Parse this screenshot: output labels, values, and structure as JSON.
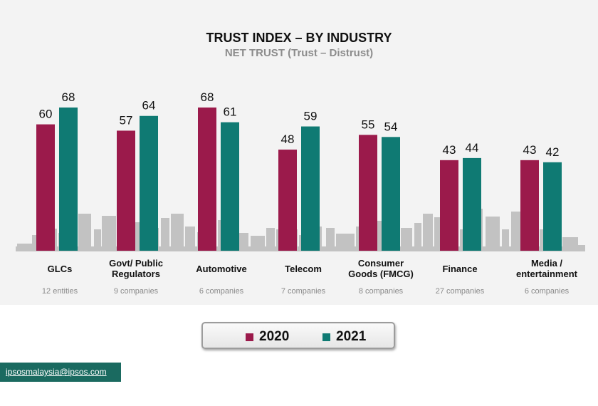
{
  "chart_data": {
    "type": "bar",
    "title": "TRUST INDEX – BY INDUSTRY",
    "subtitle": "NET TRUST (Trust – Distrust)",
    "categories": [
      "GLCs",
      "Govt/ Public\nRegulators",
      "Automotive",
      "Telecom",
      "Consumer\nGoods (FMCG)",
      "Finance",
      "Media /\nentertainment"
    ],
    "notes": [
      "12 entities",
      "9 companies",
      "6 companies",
      "7 companies",
      "8 companies",
      "27 companies",
      "6 companies"
    ],
    "series": [
      {
        "name": "2020",
        "values": [
          60,
          57,
          68,
          48,
          55,
          43,
          43
        ],
        "color": "#9b1a4b"
      },
      {
        "name": "2021",
        "values": [
          68,
          64,
          61,
          59,
          54,
          44,
          42
        ],
        "color": "#0f7a73"
      }
    ],
    "ylim": [
      0,
      70
    ],
    "xlabel": "",
    "ylabel": ""
  },
  "legend": {
    "label_2020": "2020",
    "label_2021": "2021"
  },
  "footer": {
    "email": "ipsosmalaysia@ipsos.com"
  }
}
